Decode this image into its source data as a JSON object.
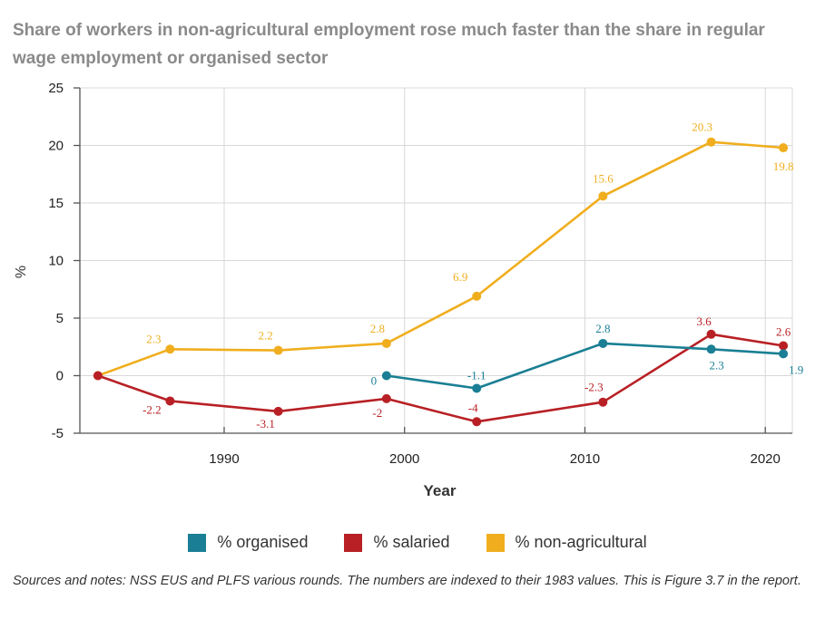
{
  "title": "Share of workers in non-agricultural employment rose much faster than the share in regular wage employment or organised sector",
  "note": "Sources and notes: NSS EUS and PLFS various rounds. The numbers are indexed to their 1983 values. This is Figure 3.7 in the report.",
  "chart_data": {
    "type": "line",
    "xlabel": "Year",
    "ylabel": "%",
    "xlim": [
      1982,
      2021.5
    ],
    "ylim": [
      -5,
      25
    ],
    "xticks": [
      1990,
      2000,
      2010,
      2020
    ],
    "yticks": [
      -5,
      0,
      5,
      10,
      15,
      20,
      25
    ],
    "grid": true,
    "legend_position": "bottom",
    "series": [
      {
        "name": "% organised",
        "color": "#1a7f94",
        "points": [
          {
            "x": 1999,
            "y": 0,
            "label": "0"
          },
          {
            "x": 2004,
            "y": -1.1,
            "label": "-1.1"
          },
          {
            "x": 2011,
            "y": 2.8,
            "label": "2.8"
          },
          {
            "x": 2017,
            "y": 2.3,
            "label": "2.3"
          },
          {
            "x": 2021,
            "y": 1.9,
            "label": "1.9"
          }
        ]
      },
      {
        "name": "% salaried",
        "color": "#b82025",
        "points": [
          {
            "x": 1983,
            "y": 0,
            "label": ""
          },
          {
            "x": 1987,
            "y": -2.2,
            "label": "-2.2"
          },
          {
            "x": 1993,
            "y": -3.1,
            "label": "-3.1"
          },
          {
            "x": 1999,
            "y": -2,
            "label": "-2"
          },
          {
            "x": 2004,
            "y": -4,
            "label": "-4"
          },
          {
            "x": 2011,
            "y": -2.3,
            "label": "-2.3"
          },
          {
            "x": 2017,
            "y": 3.6,
            "label": "3.6"
          },
          {
            "x": 2021,
            "y": 2.6,
            "label": "2.6"
          }
        ]
      },
      {
        "name": "% non-agricultural",
        "color": "#f0ae1e",
        "points": [
          {
            "x": 1983,
            "y": 0,
            "label": ""
          },
          {
            "x": 1987,
            "y": 2.3,
            "label": "2.3"
          },
          {
            "x": 1993,
            "y": 2.2,
            "label": "2.2"
          },
          {
            "x": 1999,
            "y": 2.8,
            "label": "2.8"
          },
          {
            "x": 2004,
            "y": 6.9,
            "label": "6.9"
          },
          {
            "x": 2011,
            "y": 15.6,
            "label": "15.6"
          },
          {
            "x": 2017,
            "y": 20.3,
            "label": "20.3"
          },
          {
            "x": 2021,
            "y": 19.8,
            "label": "19.8"
          }
        ]
      }
    ]
  }
}
